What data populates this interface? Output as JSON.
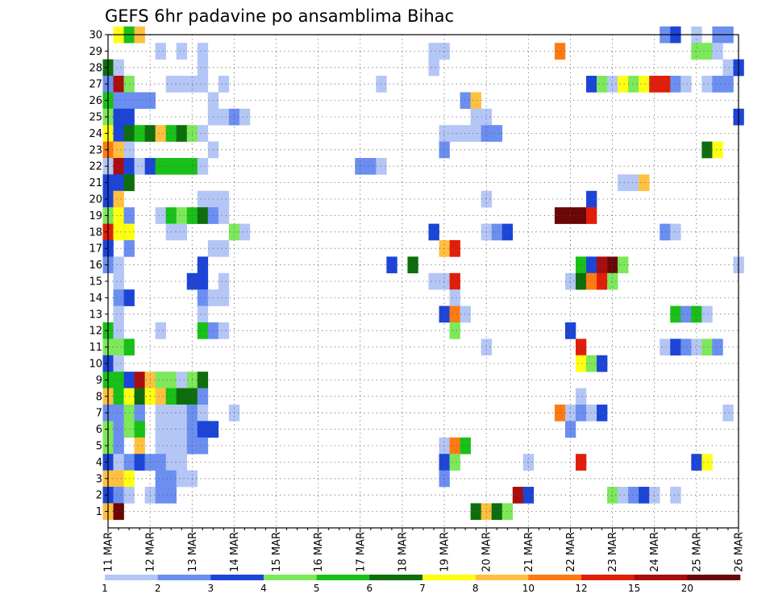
{
  "chart_data": {
    "type": "heatmap",
    "title": "GEFS 6hr padavine po ansamblima Bihac",
    "xlabel": "",
    "ylabel": "",
    "x_start_day": 11,
    "x_end_day": 26,
    "x_tick_labels": [
      "11 MAR",
      "12 MAR",
      "13 MAR",
      "14 MAR",
      "15 MAR",
      "16 MAR",
      "17 MAR",
      "18 MAR",
      "19 MAR",
      "20 MAR",
      "21 MAR",
      "22 MAR",
      "23 MAR",
      "24 MAR",
      "25 MAR",
      "26 MAR"
    ],
    "y_tick_labels": [
      "1",
      "2",
      "3",
      "4",
      "5",
      "6",
      "7",
      "8",
      "9",
      "10",
      "11",
      "12",
      "13",
      "14",
      "15",
      "16",
      "17",
      "18",
      "19",
      "20",
      "21",
      "22",
      "23",
      "24",
      "25",
      "26",
      "27",
      "28",
      "29",
      "30"
    ],
    "ylim": [
      0,
      30
    ],
    "grid": true,
    "levels": [
      1,
      2,
      3,
      4,
      5,
      6,
      7,
      8,
      10,
      12,
      15,
      20
    ],
    "level_labels": [
      "1",
      "2",
      "3",
      "4",
      "5",
      "6",
      "7",
      "8",
      "10",
      "12",
      "15",
      "20"
    ],
    "colors": [
      "#b4c6f5",
      "#6b8ef0",
      "#1c45d8",
      "#7ce85a",
      "#18c018",
      "#0e6e0e",
      "#ffff14",
      "#ffc040",
      "#ff7a10",
      "#e01e0a",
      "#a80e0e",
      "#6a0606"
    ],
    "cells": [
      [
        11.25,
        30,
        7
      ],
      [
        11.5,
        30,
        5
      ],
      [
        11.75,
        30,
        8
      ],
      [
        24.25,
        30,
        2
      ],
      [
        24.5,
        30,
        3
      ],
      [
        25,
        30,
        1
      ],
      [
        25.5,
        30,
        2
      ],
      [
        25.75,
        30,
        2
      ],
      [
        12.25,
        29,
        1
      ],
      [
        12.75,
        29,
        1
      ],
      [
        13.25,
        29,
        1
      ],
      [
        18.75,
        29,
        1
      ],
      [
        19,
        29,
        1
      ],
      [
        21.75,
        29,
        9
      ],
      [
        25,
        29,
        4
      ],
      [
        25.25,
        29,
        4
      ],
      [
        25.5,
        29,
        1
      ],
      [
        11,
        28,
        6
      ],
      [
        11.25,
        28,
        1
      ],
      [
        13.25,
        28,
        1
      ],
      [
        18.75,
        28,
        1
      ],
      [
        25.75,
        28,
        1
      ],
      [
        26,
        28,
        3
      ],
      [
        11,
        27,
        2
      ],
      [
        11.25,
        27,
        11
      ],
      [
        11.5,
        27,
        4
      ],
      [
        12.5,
        27,
        1
      ],
      [
        12.75,
        27,
        1
      ],
      [
        13,
        27,
        1
      ],
      [
        13.25,
        27,
        1
      ],
      [
        13.75,
        27,
        1
      ],
      [
        17.5,
        27,
        1
      ],
      [
        22.5,
        27,
        3
      ],
      [
        22.75,
        27,
        4
      ],
      [
        23,
        27,
        1
      ],
      [
        23.25,
        27,
        7
      ],
      [
        23.5,
        27,
        4
      ],
      [
        23.75,
        27,
        7
      ],
      [
        24,
        27,
        10
      ],
      [
        24.25,
        27,
        10
      ],
      [
        24.5,
        27,
        2
      ],
      [
        24.75,
        27,
        1
      ],
      [
        25.25,
        27,
        1
      ],
      [
        25.5,
        27,
        2
      ],
      [
        25.75,
        27,
        2
      ],
      [
        11,
        26,
        5
      ],
      [
        11.25,
        26,
        2
      ],
      [
        11.5,
        26,
        2
      ],
      [
        11.75,
        26,
        2
      ],
      [
        12,
        26,
        2
      ],
      [
        13.5,
        26,
        1
      ],
      [
        19.5,
        26,
        2
      ],
      [
        19.75,
        26,
        8
      ],
      [
        11,
        25,
        4
      ],
      [
        11.25,
        25,
        3
      ],
      [
        11.5,
        25,
        3
      ],
      [
        13.5,
        25,
        1
      ],
      [
        13.75,
        25,
        1
      ],
      [
        14,
        25,
        2
      ],
      [
        14.25,
        25,
        1
      ],
      [
        19.75,
        25,
        1
      ],
      [
        20,
        25,
        1
      ],
      [
        26,
        25,
        3
      ],
      [
        11,
        24,
        7
      ],
      [
        11.25,
        24,
        3
      ],
      [
        11.5,
        24,
        6
      ],
      [
        11.75,
        24,
        5
      ],
      [
        12,
        24,
        6
      ],
      [
        12.25,
        24,
        8
      ],
      [
        12.5,
        24,
        5
      ],
      [
        12.75,
        24,
        6
      ],
      [
        13,
        24,
        4
      ],
      [
        13.25,
        24,
        1
      ],
      [
        19,
        24,
        1
      ],
      [
        19.25,
        24,
        1
      ],
      [
        19.5,
        24,
        1
      ],
      [
        19.75,
        24,
        1
      ],
      [
        20,
        24,
        2
      ],
      [
        20.25,
        24,
        2
      ],
      [
        11,
        23,
        9
      ],
      [
        11.25,
        23,
        8
      ],
      [
        11.5,
        23,
        1
      ],
      [
        13.5,
        23,
        1
      ],
      [
        19,
        23,
        2
      ],
      [
        25.25,
        23,
        6
      ],
      [
        25.5,
        23,
        7
      ],
      [
        11,
        22,
        1
      ],
      [
        11.25,
        22,
        11
      ],
      [
        11.5,
        22,
        3
      ],
      [
        11.75,
        22,
        1
      ],
      [
        12,
        22,
        3
      ],
      [
        12.25,
        22,
        5
      ],
      [
        12.5,
        22,
        5
      ],
      [
        12.75,
        22,
        5
      ],
      [
        13,
        22,
        5
      ],
      [
        13.25,
        22,
        1
      ],
      [
        17,
        22,
        2
      ],
      [
        17.25,
        22,
        2
      ],
      [
        17.5,
        22,
        1
      ],
      [
        11,
        21,
        3
      ],
      [
        11.25,
        21,
        3
      ],
      [
        11.5,
        21,
        6
      ],
      [
        23.25,
        21,
        1
      ],
      [
        23.5,
        21,
        1
      ],
      [
        23.75,
        21,
        8
      ],
      [
        11,
        20,
        3
      ],
      [
        11.25,
        20,
        8
      ],
      [
        13.25,
        20,
        1
      ],
      [
        13.5,
        20,
        1
      ],
      [
        13.75,
        20,
        1
      ],
      [
        20,
        20,
        1
      ],
      [
        22.5,
        20,
        3
      ],
      [
        11,
        19,
        4
      ],
      [
        11.25,
        19,
        7
      ],
      [
        11.5,
        19,
        2
      ],
      [
        12.25,
        19,
        1
      ],
      [
        12.5,
        19,
        5
      ],
      [
        12.75,
        19,
        4
      ],
      [
        13,
        19,
        5
      ],
      [
        13.25,
        19,
        6
      ],
      [
        13.5,
        19,
        2
      ],
      [
        13.75,
        19,
        1
      ],
      [
        21.75,
        19,
        12
      ],
      [
        22,
        19,
        12
      ],
      [
        22.25,
        19,
        12
      ],
      [
        22.5,
        19,
        10
      ],
      [
        11,
        18,
        10
      ],
      [
        11.25,
        18,
        7
      ],
      [
        11.5,
        18,
        7
      ],
      [
        12.5,
        18,
        1
      ],
      [
        12.75,
        18,
        1
      ],
      [
        14,
        18,
        4
      ],
      [
        14.25,
        18,
        1
      ],
      [
        18.75,
        18,
        3
      ],
      [
        20,
        18,
        1
      ],
      [
        20.25,
        18,
        2
      ],
      [
        20.5,
        18,
        3
      ],
      [
        24.25,
        18,
        2
      ],
      [
        24.5,
        18,
        1
      ],
      [
        11,
        17,
        3
      ],
      [
        11.5,
        17,
        2
      ],
      [
        13.5,
        17,
        1
      ],
      [
        13.75,
        17,
        1
      ],
      [
        19,
        17,
        8
      ],
      [
        19.25,
        17,
        10
      ],
      [
        11,
        16,
        2
      ],
      [
        11.25,
        16,
        1
      ],
      [
        13.25,
        16,
        3
      ],
      [
        17.75,
        16,
        3
      ],
      [
        18.25,
        16,
        6
      ],
      [
        22.25,
        16,
        5
      ],
      [
        22.5,
        16,
        3
      ],
      [
        22.75,
        16,
        11
      ],
      [
        23,
        16,
        12
      ],
      [
        23.25,
        16,
        4
      ],
      [
        26,
        16,
        1
      ],
      [
        11.25,
        15,
        1
      ],
      [
        13,
        15,
        3
      ],
      [
        13.25,
        15,
        3
      ],
      [
        13.75,
        15,
        1
      ],
      [
        18.75,
        15,
        1
      ],
      [
        19,
        15,
        1
      ],
      [
        19.25,
        15,
        10
      ],
      [
        22,
        15,
        1
      ],
      [
        22.25,
        15,
        6
      ],
      [
        22.5,
        15,
        9
      ],
      [
        22.75,
        15,
        10
      ],
      [
        23,
        15,
        4
      ],
      [
        11.25,
        14,
        2
      ],
      [
        11.5,
        14,
        3
      ],
      [
        13.25,
        14,
        2
      ],
      [
        13.5,
        14,
        1
      ],
      [
        13.75,
        14,
        1
      ],
      [
        19.25,
        14,
        1
      ],
      [
        11.25,
        13,
        1
      ],
      [
        13.25,
        13,
        1
      ],
      [
        19,
        13,
        3
      ],
      [
        19.25,
        13,
        9
      ],
      [
        19.5,
        13,
        1
      ],
      [
        24.5,
        13,
        5
      ],
      [
        24.75,
        13,
        2
      ],
      [
        25,
        13,
        5
      ],
      [
        25.25,
        13,
        1
      ],
      [
        11,
        12,
        5
      ],
      [
        11.25,
        12,
        1
      ],
      [
        12.25,
        12,
        1
      ],
      [
        13.25,
        12,
        5
      ],
      [
        13.5,
        12,
        2
      ],
      [
        13.75,
        12,
        1
      ],
      [
        19.25,
        12,
        4
      ],
      [
        22,
        12,
        3
      ],
      [
        11,
        11,
        4
      ],
      [
        11.25,
        11,
        4
      ],
      [
        11.5,
        11,
        5
      ],
      [
        20,
        11,
        1
      ],
      [
        22.25,
        11,
        10
      ],
      [
        24.25,
        11,
        1
      ],
      [
        24.5,
        11,
        3
      ],
      [
        24.75,
        11,
        2
      ],
      [
        25,
        11,
        1
      ],
      [
        25.25,
        11,
        4
      ],
      [
        25.5,
        11,
        2
      ],
      [
        11,
        10,
        3
      ],
      [
        11.25,
        10,
        1
      ],
      [
        22.25,
        10,
        7
      ],
      [
        22.5,
        10,
        4
      ],
      [
        22.75,
        10,
        3
      ],
      [
        11,
        9,
        5
      ],
      [
        11.25,
        9,
        5
      ],
      [
        11.5,
        9,
        3
      ],
      [
        11.75,
        9,
        11
      ],
      [
        12,
        9,
        8
      ],
      [
        12.25,
        9,
        4
      ],
      [
        12.5,
        9,
        4
      ],
      [
        12.75,
        9,
        1
      ],
      [
        13,
        9,
        4
      ],
      [
        13.25,
        9,
        6
      ],
      [
        11,
        8,
        8
      ],
      [
        11.25,
        8,
        5
      ],
      [
        11.5,
        8,
        7
      ],
      [
        11.75,
        8,
        6
      ],
      [
        12,
        8,
        7
      ],
      [
        12.25,
        8,
        8
      ],
      [
        12.5,
        8,
        5
      ],
      [
        12.75,
        8,
        6
      ],
      [
        13,
        8,
        6
      ],
      [
        13.25,
        8,
        2
      ],
      [
        22.25,
        8,
        1
      ],
      [
        11,
        7,
        2
      ],
      [
        11.25,
        7,
        2
      ],
      [
        11.5,
        7,
        4
      ],
      [
        11.75,
        7,
        2
      ],
      [
        12.25,
        7,
        1
      ],
      [
        12.5,
        7,
        1
      ],
      [
        12.75,
        7,
        1
      ],
      [
        13,
        7,
        2
      ],
      [
        13.25,
        7,
        1
      ],
      [
        14,
        7,
        1
      ],
      [
        21.75,
        7,
        9
      ],
      [
        22,
        7,
        1
      ],
      [
        22.25,
        7,
        2
      ],
      [
        22.5,
        7,
        1
      ],
      [
        22.75,
        7,
        3
      ],
      [
        25.75,
        7,
        1
      ],
      [
        11,
        6,
        4
      ],
      [
        11.25,
        6,
        2
      ],
      [
        11.5,
        6,
        4
      ],
      [
        11.75,
        6,
        5
      ],
      [
        12.25,
        6,
        1
      ],
      [
        12.5,
        6,
        1
      ],
      [
        12.75,
        6,
        1
      ],
      [
        13,
        6,
        2
      ],
      [
        13.25,
        6,
        3
      ],
      [
        13.5,
        6,
        3
      ],
      [
        22,
        6,
        2
      ],
      [
        11,
        5,
        4
      ],
      [
        11.25,
        5,
        2
      ],
      [
        11.75,
        5,
        8
      ],
      [
        12.25,
        5,
        1
      ],
      [
        12.5,
        5,
        1
      ],
      [
        12.75,
        5,
        1
      ],
      [
        13,
        5,
        2
      ],
      [
        13.25,
        5,
        2
      ],
      [
        19,
        5,
        1
      ],
      [
        19.25,
        5,
        9
      ],
      [
        19.5,
        5,
        5
      ],
      [
        11,
        4,
        3
      ],
      [
        11.25,
        4,
        1
      ],
      [
        11.5,
        4,
        2
      ],
      [
        11.75,
        4,
        3
      ],
      [
        12,
        4,
        2
      ],
      [
        12.25,
        4,
        2
      ],
      [
        12.5,
        4,
        1
      ],
      [
        12.75,
        4,
        1
      ],
      [
        19,
        4,
        3
      ],
      [
        19.25,
        4,
        4
      ],
      [
        21,
        4,
        1
      ],
      [
        22.25,
        4,
        10
      ],
      [
        25,
        4,
        3
      ],
      [
        25.25,
        4,
        7
      ],
      [
        11,
        3,
        8
      ],
      [
        11.25,
        3,
        8
      ],
      [
        11.5,
        3,
        7
      ],
      [
        12.25,
        3,
        2
      ],
      [
        12.5,
        3,
        2
      ],
      [
        12.75,
        3,
        1
      ],
      [
        13,
        3,
        1
      ],
      [
        19,
        3,
        2
      ],
      [
        11,
        2,
        3
      ],
      [
        11.25,
        2,
        2
      ],
      [
        11.5,
        2,
        1
      ],
      [
        12,
        2,
        1
      ],
      [
        12.25,
        2,
        2
      ],
      [
        12.5,
        2,
        2
      ],
      [
        20.75,
        2,
        11
      ],
      [
        21,
        2,
        3
      ],
      [
        23,
        2,
        4
      ],
      [
        23.25,
        2,
        1
      ],
      [
        23.5,
        2,
        2
      ],
      [
        23.75,
        2,
        3
      ],
      [
        24,
        2,
        1
      ],
      [
        24.5,
        2,
        1
      ],
      [
        11,
        1,
        8
      ],
      [
        11.25,
        1,
        12
      ],
      [
        19.75,
        1,
        6
      ],
      [
        20,
        1,
        8
      ],
      [
        20.25,
        1,
        6
      ],
      [
        20.5,
        1,
        4
      ]
    ]
  }
}
